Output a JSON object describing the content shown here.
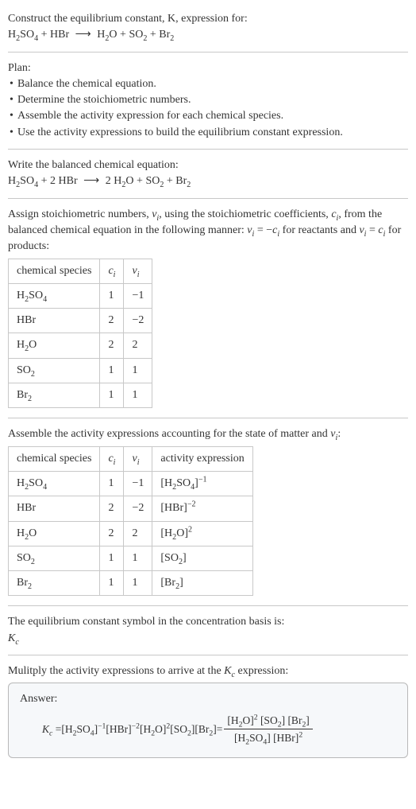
{
  "intro": {
    "prompt_line1": "Construct the equilibrium constant, K, expression for:"
  },
  "unbalanced": {
    "r1": "H",
    "r1s": "2",
    "r1b": "SO",
    "r1bs": "4",
    "plus1": " + ",
    "r2": "HBr",
    "arrow": "⟶",
    "p1": "H",
    "p1s": "2",
    "p1b": "O",
    "plus2": " + ",
    "p2": "SO",
    "p2s": "2",
    "plus3": " + ",
    "p3": "Br",
    "p3s": "2"
  },
  "plan": {
    "heading": "Plan:",
    "b1": "Balance the chemical equation.",
    "b2": "Determine the stoichiometric numbers.",
    "b3": "Assemble the activity expression for each chemical species.",
    "b4": "Use the activity expressions to build the equilibrium constant expression."
  },
  "balanced_label": "Write the balanced chemical equation:",
  "balanced": {
    "r1": "H",
    "r1s": "2",
    "r1b": "SO",
    "r1bs": "4",
    "plus1": " + ",
    "c2": "2 ",
    "r2": "HBr",
    "arrow": "⟶",
    "cp1": "2 ",
    "p1": "H",
    "p1s": "2",
    "p1b": "O",
    "plus2": " + ",
    "p2": "SO",
    "p2s": "2",
    "plus3": " + ",
    "p3": "Br",
    "p3s": "2"
  },
  "assign_text_a": "Assign stoichiometric numbers, ",
  "assign_text_b": ", using the stoichiometric coefficients, ",
  "assign_text_c": ", from the balanced chemical equation in the following manner: ",
  "assign_text_d": " for reactants and ",
  "assign_text_e": " for products:",
  "sym": {
    "nu_i": "ν",
    "sub_i": "i",
    "c_i": "c",
    "eq": " = ",
    "neg": "−"
  },
  "table1": {
    "h1": "chemical species",
    "h2": "c",
    "h2s": "i",
    "h3": "ν",
    "h3s": "i",
    "rows": [
      {
        "sp_a": "H",
        "sp_as": "2",
        "sp_b": "SO",
        "sp_bs": "4",
        "c": "1",
        "v": "−1"
      },
      {
        "sp_a": "HBr",
        "sp_as": "",
        "sp_b": "",
        "sp_bs": "",
        "c": "2",
        "v": "−2"
      },
      {
        "sp_a": "H",
        "sp_as": "2",
        "sp_b": "O",
        "sp_bs": "",
        "c": "2",
        "v": "2"
      },
      {
        "sp_a": "SO",
        "sp_as": "2",
        "sp_b": "",
        "sp_bs": "",
        "c": "1",
        "v": "1"
      },
      {
        "sp_a": "Br",
        "sp_as": "2",
        "sp_b": "",
        "sp_bs": "",
        "c": "1",
        "v": "1"
      }
    ]
  },
  "activity_intro_a": "Assemble the activity expressions accounting for the state of matter and ",
  "activity_intro_b": ":",
  "table2": {
    "h1": "chemical species",
    "h2": "c",
    "h2s": "i",
    "h3": "ν",
    "h3s": "i",
    "h4": "activity expression",
    "rows": [
      {
        "sp_a": "H",
        "sp_as": "2",
        "sp_b": "SO",
        "sp_bs": "4",
        "c": "1",
        "v": "−1",
        "ae_a": "[H",
        "ae_as": "2",
        "ae_b": "SO",
        "ae_bs": "4",
        "ae_c": "]",
        "ae_sup": "−1"
      },
      {
        "sp_a": "HBr",
        "sp_as": "",
        "sp_b": "",
        "sp_bs": "",
        "c": "2",
        "v": "−2",
        "ae_a": "[HBr]",
        "ae_as": "",
        "ae_b": "",
        "ae_bs": "",
        "ae_c": "",
        "ae_sup": "−2"
      },
      {
        "sp_a": "H",
        "sp_as": "2",
        "sp_b": "O",
        "sp_bs": "",
        "c": "2",
        "v": "2",
        "ae_a": "[H",
        "ae_as": "2",
        "ae_b": "O]",
        "ae_bs": "",
        "ae_c": "",
        "ae_sup": "2"
      },
      {
        "sp_a": "SO",
        "sp_as": "2",
        "sp_b": "",
        "sp_bs": "",
        "c": "1",
        "v": "1",
        "ae_a": "[SO",
        "ae_as": "2",
        "ae_b": "]",
        "ae_bs": "",
        "ae_c": "",
        "ae_sup": ""
      },
      {
        "sp_a": "Br",
        "sp_as": "2",
        "sp_b": "",
        "sp_bs": "",
        "c": "1",
        "v": "1",
        "ae_a": "[Br",
        "ae_as": "2",
        "ae_b": "]",
        "ae_bs": "",
        "ae_c": "",
        "ae_sup": ""
      }
    ]
  },
  "kc_symbol_text": "The equilibrium constant symbol in the concentration basis is:",
  "kc_sym": "K",
  "kc_sub": "c",
  "multiply_text_a": "Mulitply the activity expressions to arrive at the ",
  "multiply_text_b": " expression:",
  "answer_label": "Answer:",
  "final": {
    "lhs_a": "K",
    "lhs_b": "c",
    "eq": " = ",
    "t1_a": "[H",
    "t1_as": "2",
    "t1_b": "SO",
    "t1_bs": "4",
    "t1_c": "]",
    "t1_sup": "−1",
    "sp": " ",
    "t2_a": "[HBr]",
    "t2_sup": "−2",
    "t3_a": "[H",
    "t3_as": "2",
    "t3_b": "O]",
    "t3_sup": "2",
    "t4_a": "[SO",
    "t4_as": "2",
    "t4_b": "]",
    "t5_a": "[Br",
    "t5_as": "2",
    "t5_b": "]",
    "eq2": " = ",
    "num_a": "[H",
    "num_as": "2",
    "num_b": "O]",
    "num_sup": "2",
    "num_c": "[SO",
    "num_cs": "2",
    "num_d": "]",
    "num_e": "[Br",
    "num_es": "2",
    "num_f": "]",
    "den_a": "[H",
    "den_as": "2",
    "den_b": "SO",
    "den_bs": "4",
    "den_c": "]",
    "den_d": "[HBr]",
    "den_dsup": "2"
  }
}
